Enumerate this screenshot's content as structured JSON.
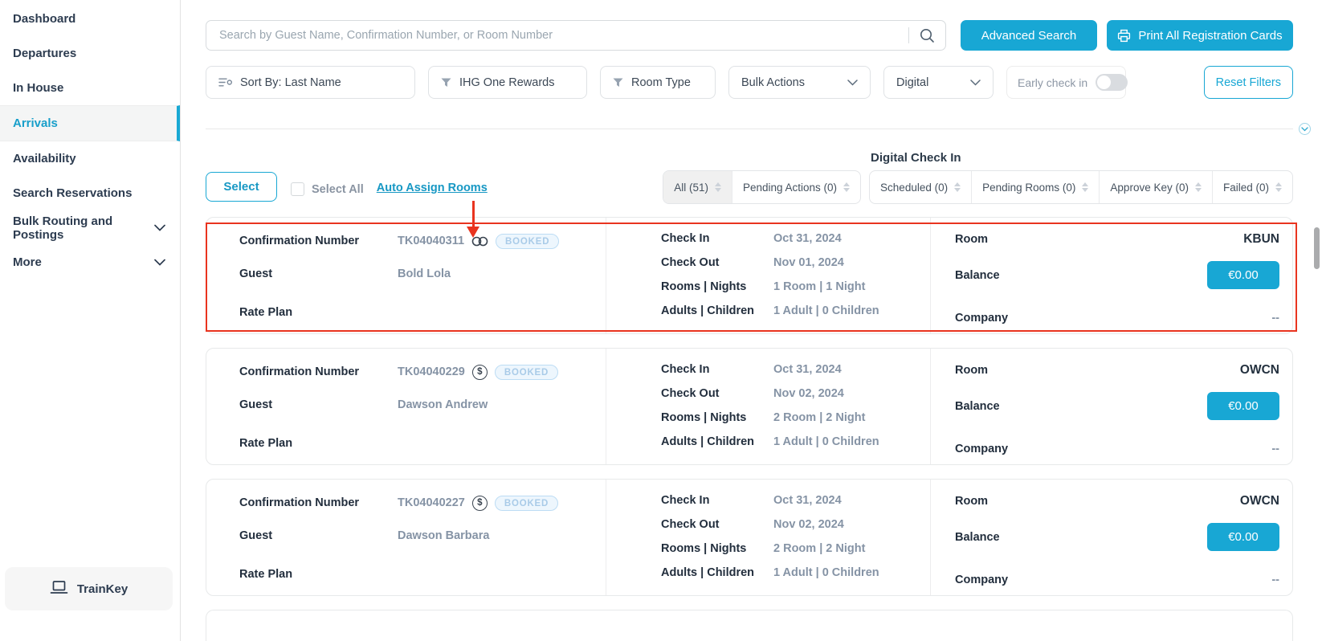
{
  "colors": {
    "accent": "#18a7d4",
    "annotation_red": "#e9341f",
    "booked_badge_text": "#a9cbe8",
    "active_nav": "#189fca"
  },
  "sidebar": {
    "items": [
      {
        "label": "Dashboard",
        "active": false,
        "expandable": false
      },
      {
        "label": "Departures",
        "active": false,
        "expandable": false
      },
      {
        "label": "In House",
        "active": false,
        "expandable": false
      },
      {
        "label": "Arrivals",
        "active": true,
        "expandable": false
      },
      {
        "label": "Availability",
        "active": false,
        "expandable": false
      },
      {
        "label": "Search Reservations",
        "active": false,
        "expandable": false
      },
      {
        "label": "Bulk Routing and Postings",
        "active": false,
        "expandable": true
      },
      {
        "label": "More",
        "active": false,
        "expandable": true
      }
    ],
    "footer_label": "TrainKey"
  },
  "header": {
    "search_placeholder": "Search by Guest Name, Confirmation Number, or Room Number",
    "advanced_search_label": "Advanced Search",
    "print_all_label": "Print All Registration Cards"
  },
  "filters": {
    "sort_by_label": "Sort By: Last Name",
    "ihg_label": "IHG One Rewards",
    "room_type_label": "Room Type",
    "bulk_actions_label": "Bulk Actions",
    "digital_label": "Digital",
    "early_check_in_label": "Early check in",
    "early_check_in_on": false,
    "reset_label": "Reset Filters"
  },
  "toolbar": {
    "select_label": "Select",
    "select_all_label": "Select All",
    "select_all_checked": false,
    "auto_assign_label": "Auto Assign Rooms",
    "tabs": [
      {
        "label": "All (51)",
        "active": true
      },
      {
        "label": "Pending Actions (0)",
        "active": false
      }
    ],
    "digital_check_in_label": "Digital Check In",
    "digital_tabs": [
      {
        "label": "Scheduled (0)"
      },
      {
        "label": "Pending Rooms (0)"
      },
      {
        "label": "Approve Key (0)"
      },
      {
        "label": "Failed (0)"
      }
    ]
  },
  "field_labels": {
    "confirmation": "Confirmation Number",
    "guest": "Guest",
    "rate_plan": "Rate Plan",
    "check_in": "Check In",
    "check_out": "Check Out",
    "rooms_nights": "Rooms | Nights",
    "adults_children": "Adults | Children",
    "room": "Room",
    "balance": "Balance",
    "company": "Company"
  },
  "reservations": [
    {
      "confirmation_number": "TK04040311",
      "icon": "link",
      "status": "BOOKED",
      "guest": "Bold Lola",
      "rate_plan": "",
      "check_in": "Oct 31, 2024",
      "check_out": "Nov 01, 2024",
      "rooms_nights": "1 Room | 1 Night",
      "adults_children": "1 Adult | 0 Children",
      "room": "KBUN",
      "balance": "€0.00",
      "company": "--",
      "highlighted": true
    },
    {
      "confirmation_number": "TK04040229",
      "icon": "dollar",
      "status": "BOOKED",
      "guest": "Dawson Andrew",
      "rate_plan": "",
      "check_in": "Oct 31, 2024",
      "check_out": "Nov 02, 2024",
      "rooms_nights": "2 Room | 2 Night",
      "adults_children": "1 Adult | 0 Children",
      "room": "OWCN",
      "balance": "€0.00",
      "company": "--",
      "highlighted": false
    },
    {
      "confirmation_number": "TK04040227",
      "icon": "dollar",
      "status": "BOOKED",
      "guest": "Dawson Barbara",
      "rate_plan": "",
      "check_in": "Oct 31, 2024",
      "check_out": "Nov 02, 2024",
      "rooms_nights": "2 Room | 2 Night",
      "adults_children": "1 Adult | 0 Children",
      "room": "OWCN",
      "balance": "€0.00",
      "company": "--",
      "highlighted": false
    }
  ]
}
